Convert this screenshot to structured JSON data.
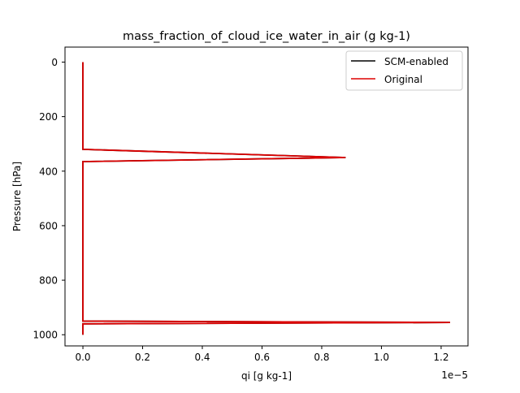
{
  "chart_data": {
    "type": "line",
    "title": "mass_fraction_of_cloud_ice_water_in_air (g kg-1)",
    "xlabel": "qi [g kg-1]",
    "ylabel": "Pressure [hPa]",
    "x_offset_text": "1e−5",
    "x_scale": 1e-05,
    "xlim": [
      -6e-07,
      1.29e-05
    ],
    "ylim": [
      1041,
      -55
    ],
    "y_inverted": true,
    "x_ticks": [
      0.0,
      2e-06,
      4e-06,
      6e-06,
      8e-06,
      1e-05,
      1.2e-05
    ],
    "x_tick_labels": [
      "0.0",
      "0.2",
      "0.4",
      "0.6",
      "0.8",
      "1.0",
      "1.2"
    ],
    "y_ticks": [
      0,
      200,
      400,
      600,
      800,
      1000
    ],
    "y_tick_labels": [
      "0",
      "200",
      "400",
      "600",
      "800",
      "1000"
    ],
    "grid": false,
    "legend_position": "top-right",
    "series": [
      {
        "name": "SCM-enabled",
        "color": "#000000",
        "x": [
          0,
          0,
          0,
          8.8e-06,
          0,
          0,
          0,
          1.23e-05,
          0,
          0
        ],
        "y": [
          0,
          200,
          320,
          350,
          365,
          600,
          950,
          955,
          960,
          1000
        ]
      },
      {
        "name": "Original",
        "color": "#dd0000",
        "x": [
          0,
          0,
          0,
          8.8e-06,
          0,
          0,
          0,
          1.23e-05,
          0,
          0
        ],
        "y": [
          0,
          200,
          320,
          350,
          365,
          600,
          950,
          955,
          960,
          1000
        ]
      }
    ]
  }
}
